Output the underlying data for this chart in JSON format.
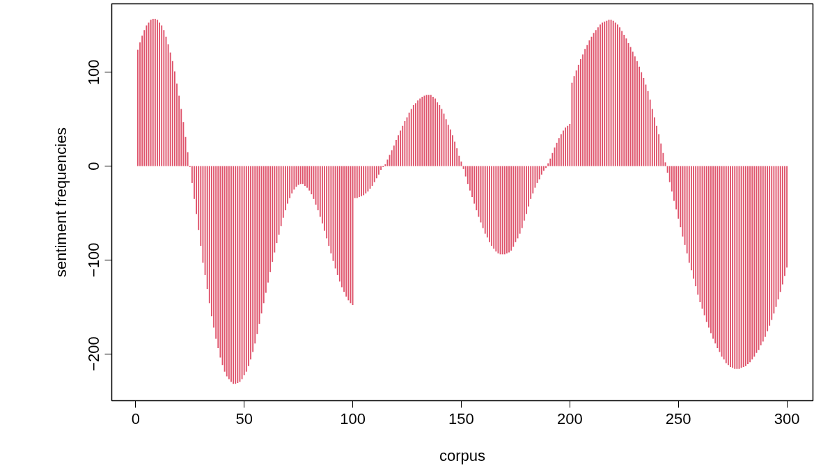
{
  "chart_data": {
    "type": "bar",
    "xlabel": "corpus",
    "ylabel": "sentiment frequencies",
    "color": "#df536b",
    "xlim": [
      -11,
      312
    ],
    "ylim": [
      -250,
      173
    ],
    "xticks": [
      0,
      50,
      100,
      150,
      200,
      250,
      300
    ],
    "yticks": [
      {
        "value": -200,
        "label": "−200"
      },
      {
        "value": -100,
        "label": "−100"
      },
      0,
      100
    ],
    "x": [
      1,
      2,
      3,
      4,
      5,
      6,
      7,
      8,
      9,
      10,
      11,
      12,
      13,
      14,
      15,
      16,
      17,
      18,
      19,
      20,
      21,
      22,
      23,
      24,
      25,
      26,
      27,
      28,
      29,
      30,
      31,
      32,
      33,
      34,
      35,
      36,
      37,
      38,
      39,
      40,
      41,
      42,
      43,
      44,
      45,
      46,
      47,
      48,
      49,
      50,
      51,
      52,
      53,
      54,
      55,
      56,
      57,
      58,
      59,
      60,
      61,
      62,
      63,
      64,
      65,
      66,
      67,
      68,
      69,
      70,
      71,
      72,
      73,
      74,
      75,
      76,
      77,
      78,
      79,
      80,
      81,
      82,
      83,
      84,
      85,
      86,
      87,
      88,
      89,
      90,
      91,
      92,
      93,
      94,
      95,
      96,
      97,
      98,
      99,
      100,
      101,
      102,
      103,
      104,
      105,
      106,
      107,
      108,
      109,
      110,
      111,
      112,
      113,
      114,
      115,
      116,
      117,
      118,
      119,
      120,
      121,
      122,
      123,
      124,
      125,
      126,
      127,
      128,
      129,
      130,
      131,
      132,
      133,
      134,
      135,
      136,
      137,
      138,
      139,
      140,
      141,
      142,
      143,
      144,
      145,
      146,
      147,
      148,
      149,
      150,
      151,
      152,
      153,
      154,
      155,
      156,
      157,
      158,
      159,
      160,
      161,
      162,
      163,
      164,
      165,
      166,
      167,
      168,
      169,
      170,
      171,
      172,
      173,
      174,
      175,
      176,
      177,
      178,
      179,
      180,
      181,
      182,
      183,
      184,
      185,
      186,
      187,
      188,
      189,
      190,
      191,
      192,
      193,
      194,
      195,
      196,
      197,
      198,
      199,
      200,
      201,
      202,
      203,
      204,
      205,
      206,
      207,
      208,
      209,
      210,
      211,
      212,
      213,
      214,
      215,
      216,
      217,
      218,
      219,
      220,
      221,
      222,
      223,
      224,
      225,
      226,
      227,
      228,
      229,
      230,
      231,
      232,
      233,
      234,
      235,
      236,
      237,
      238,
      239,
      240,
      241,
      242,
      243,
      244,
      245,
      246,
      247,
      248,
      249,
      250,
      251,
      252,
      253,
      254,
      255,
      256,
      257,
      258,
      259,
      260,
      261,
      262,
      263,
      264,
      265,
      266,
      267,
      268,
      269,
      270,
      271,
      272,
      273,
      274,
      275,
      276,
      277,
      278,
      279,
      280,
      281,
      282,
      283,
      284,
      285,
      286,
      287,
      288,
      289,
      290,
      291,
      292,
      293,
      294,
      295,
      296,
      297,
      298,
      299,
      300
    ],
    "values": [
      124,
      132,
      139,
      145,
      150,
      153,
      156,
      157,
      157,
      156,
      153,
      150,
      145,
      138,
      130,
      121,
      112,
      101,
      88,
      75,
      61,
      47,
      31,
      15,
      -1,
      -18,
      -35,
      -51,
      -68,
      -85,
      -103,
      -116,
      -131,
      -146,
      -160,
      -172,
      -184,
      -194,
      -204,
      -212,
      -219,
      -224,
      -227,
      -230,
      -232,
      -232,
      -231,
      -230,
      -227,
      -223,
      -219,
      -213,
      -206,
      -198,
      -189,
      -179,
      -168,
      -157,
      -146,
      -135,
      -124,
      -113,
      -102,
      -92,
      -82,
      -73,
      -64,
      -55,
      -47,
      -40,
      -34,
      -29,
      -25,
      -22,
      -20,
      -19,
      -19,
      -21,
      -23,
      -26,
      -30,
      -35,
      -41,
      -47,
      -54,
      -61,
      -69,
      -77,
      -85,
      -93,
      -101,
      -109,
      -116,
      -123,
      -129,
      -134,
      -139,
      -143,
      -146,
      -148,
      -34,
      -34,
      -33,
      -32,
      -31,
      -29,
      -27,
      -24,
      -21,
      -17,
      -13,
      -9,
      -4,
      -1,
      2,
      7,
      12,
      17,
      22,
      28,
      33,
      38,
      43,
      48,
      52,
      57,
      61,
      65,
      67,
      70,
      72,
      74,
      75,
      76,
      76,
      76,
      74,
      72,
      68,
      65,
      61,
      56,
      50,
      44,
      39,
      33,
      26,
      19,
      11,
      5,
      -3,
      -11,
      -19,
      -26,
      -33,
      -40,
      -47,
      -54,
      -60,
      -66,
      -72,
      -76,
      -81,
      -85,
      -88,
      -91,
      -93,
      -94,
      -94,
      -94,
      -93,
      -92,
      -90,
      -86,
      -81,
      -77,
      -72,
      -66,
      -58,
      -51,
      -43,
      -35,
      -29,
      -23,
      -18,
      -14,
      -9,
      -5,
      -2,
      3,
      8,
      14,
      20,
      25,
      30,
      34,
      38,
      41,
      43,
      45,
      89,
      96,
      102,
      108,
      114,
      119,
      125,
      129,
      134,
      138,
      142,
      145,
      148,
      151,
      153,
      154,
      155,
      156,
      156,
      155,
      153,
      151,
      148,
      144,
      140,
      136,
      131,
      127,
      122,
      117,
      112,
      106,
      100,
      94,
      87,
      80,
      71,
      61,
      52,
      43,
      34,
      24,
      14,
      4,
      -7,
      -17,
      -27,
      -37,
      -46,
      -56,
      -65,
      -75,
      -84,
      -93,
      -103,
      -111,
      -120,
      -128,
      -137,
      -145,
      -152,
      -159,
      -166,
      -172,
      -178,
      -184,
      -189,
      -194,
      -198,
      -203,
      -206,
      -210,
      -212,
      -214,
      -215,
      -216,
      -216,
      -216,
      -215,
      -214,
      -213,
      -211,
      -209,
      -206,
      -203,
      -199,
      -196,
      -191,
      -187,
      -182,
      -176,
      -170,
      -164,
      -157,
      -150,
      -142,
      -134,
      -126,
      -117,
      -108
    ]
  }
}
